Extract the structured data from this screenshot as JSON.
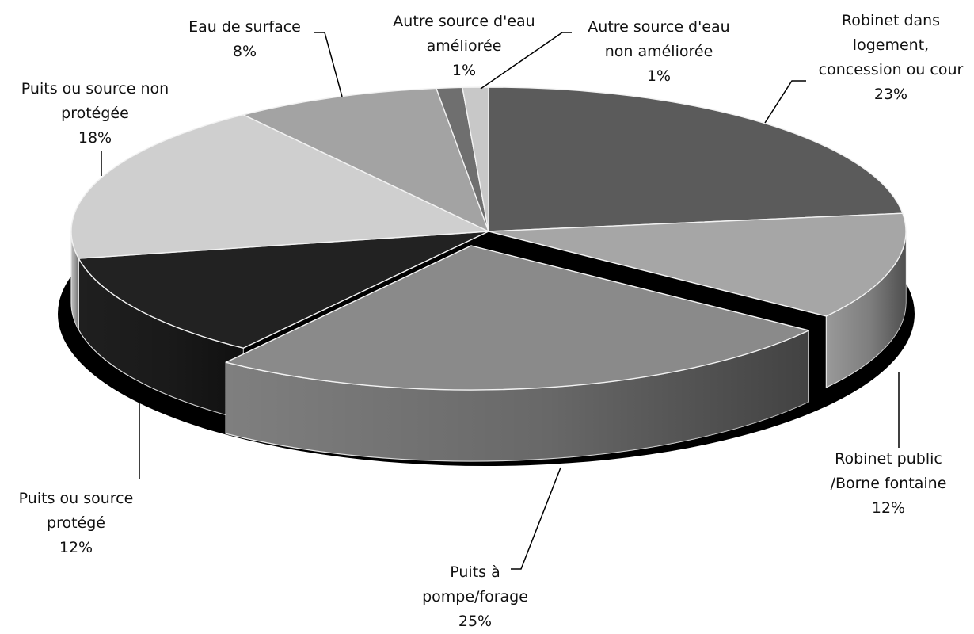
{
  "chart_data": {
    "type": "pie",
    "title": "",
    "slices": [
      {
        "label_lines": [
          "Robinet dans",
          "logement,",
          "concession ou cour"
        ],
        "value": 23,
        "percent_label": "23%",
        "color": "#5b5b5b"
      },
      {
        "label_lines": [
          "Robinet public",
          "/Borne fontaine"
        ],
        "value": 12,
        "percent_label": "12%",
        "color": "#a6a6a6"
      },
      {
        "label_lines": [
          "Puits à",
          "pompe/forage"
        ],
        "value": 25,
        "percent_label": "25%",
        "color": "#8a8a8a"
      },
      {
        "label_lines": [
          "Puits ou source",
          "protégé"
        ],
        "value": 12,
        "percent_label": "12%",
        "color": "#222222"
      },
      {
        "label_lines": [
          "Puits ou source non",
          "protégée"
        ],
        "value": 18,
        "percent_label": "18%",
        "color": "#cfcfcf"
      },
      {
        "label_lines": [
          "Eau de surface"
        ],
        "value": 8,
        "percent_label": "8%",
        "color": "#a3a3a3"
      },
      {
        "label_lines": [
          "Autre source d'eau",
          "améliorée"
        ],
        "value": 1,
        "percent_label": "1%",
        "color": "#6f6f6f"
      },
      {
        "label_lines": [
          "Autre source d'eau",
          "non améliorée"
        ],
        "value": 1,
        "percent_label": "1%",
        "color": "#c8c8c8"
      }
    ]
  }
}
